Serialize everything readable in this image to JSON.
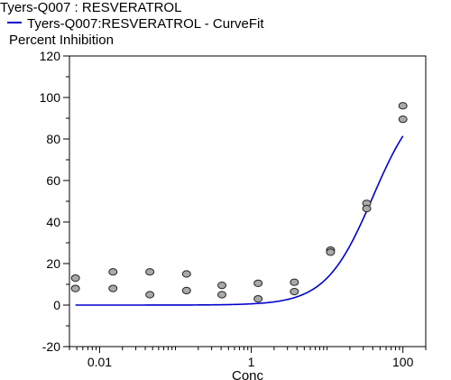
{
  "chart_data": {
    "type": "scatter",
    "title": "Tyers-Q007 : RESVERATROL",
    "ylabel": "Percent Inhibition",
    "xlabel": "Conc",
    "xscale": "log",
    "xlim": [
      0.004,
      200
    ],
    "ylim": [
      -20,
      120
    ],
    "yticks": [
      -20,
      0,
      20,
      40,
      60,
      80,
      100,
      120
    ],
    "ytick_labels": [
      "-20",
      "0",
      "20",
      "40",
      "60",
      "80",
      "100",
      "120"
    ],
    "xticks": [
      0.01,
      1,
      100
    ],
    "xtick_labels": [
      "0.01",
      "1",
      "100"
    ],
    "grid": false,
    "legend_position": "top-left",
    "series": [
      {
        "name": "",
        "kind": "points",
        "color": "#a9a9a9",
        "points": [
          {
            "x": 0.0048,
            "y": 13
          },
          {
            "x": 0.0048,
            "y": 8
          },
          {
            "x": 0.015,
            "y": 16
          },
          {
            "x": 0.015,
            "y": 8
          },
          {
            "x": 0.046,
            "y": 16
          },
          {
            "x": 0.046,
            "y": 5
          },
          {
            "x": 0.14,
            "y": 15
          },
          {
            "x": 0.14,
            "y": 7
          },
          {
            "x": 0.41,
            "y": 9.5
          },
          {
            "x": 0.41,
            "y": 5
          },
          {
            "x": 1.23,
            "y": 10.5
          },
          {
            "x": 1.23,
            "y": 3
          },
          {
            "x": 3.7,
            "y": 11
          },
          {
            "x": 3.7,
            "y": 6.5
          },
          {
            "x": 11.1,
            "y": 26.5
          },
          {
            "x": 11.1,
            "y": 25.5
          },
          {
            "x": 33.3,
            "y": 49
          },
          {
            "x": 33.3,
            "y": 46.5
          },
          {
            "x": 100,
            "y": 96
          },
          {
            "x": 100,
            "y": 89.5
          }
        ]
      },
      {
        "name": "Tyers-Q007:RESVERATROL - CurveFit",
        "kind": "curve",
        "color": "#0000cc",
        "x_range": [
          0.0048,
          100
        ],
        "fit": {
          "bottom": 0,
          "top": 104,
          "ec50": 40,
          "hill": 1.4
        }
      }
    ]
  }
}
